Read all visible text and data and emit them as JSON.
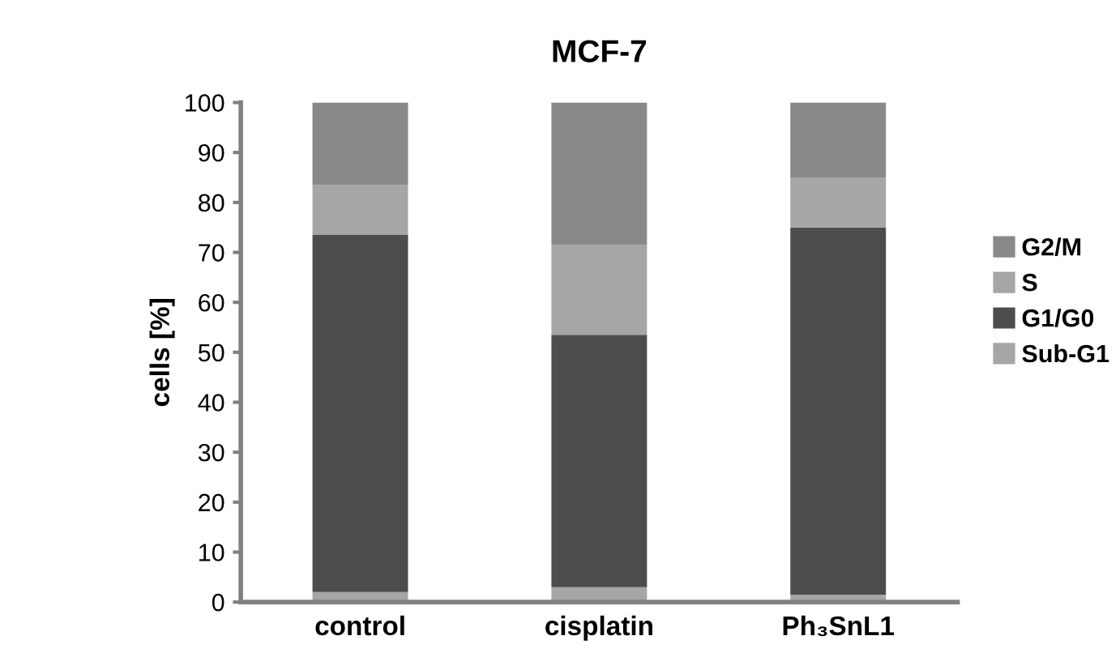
{
  "chart_data": {
    "type": "bar",
    "title": "MCF-7",
    "ylabel": "cells [%]",
    "stacked": true,
    "legend": "right",
    "grid": false,
    "categories": [
      "control",
      "cisplatin",
      "Ph₃SnL1"
    ],
    "series": [
      {
        "name": "Sub-G1",
        "color": "#a6a6a6",
        "values": [
          2,
          3,
          1.5
        ]
      },
      {
        "name": "G1/G0",
        "color": "#4d4d4d",
        "values": [
          71.5,
          50.5,
          73.5
        ]
      },
      {
        "name": "S",
        "color": "#a6a6a6",
        "values": [
          10,
          18,
          10
        ]
      },
      {
        "name": "G2/M",
        "color": "#898989",
        "values": [
          16.5,
          28.5,
          15
        ]
      }
    ],
    "ylim": [
      0,
      100
    ],
    "yticks": [
      0,
      10,
      20,
      30,
      40,
      50,
      60,
      70,
      80,
      90,
      100
    ]
  }
}
